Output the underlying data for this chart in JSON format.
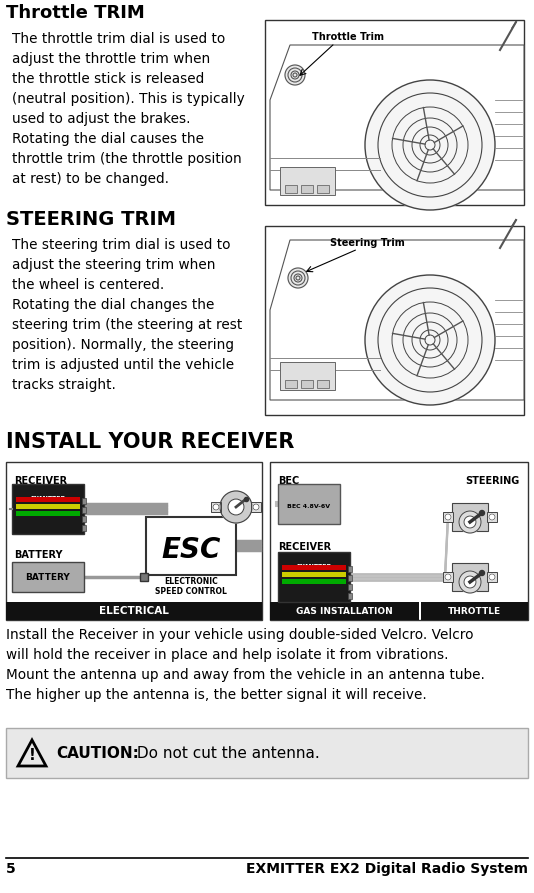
{
  "bg_color": "#ffffff",
  "page_number": "5",
  "footer_text": "EXMITTER EX2 Digital Radio System",
  "section1_title": "Throttle TRIM",
  "section1_body": "The throttle trim dial is used to\nadjust the throttle trim when\nthe throttle stick is released\n(neutral position). This is typically\nused to adjust the brakes.\nRotating the dial causes the\nthrottle trim (the throttle position\nat rest) to be changed.",
  "section1_img_label": "Throttle Trim",
  "section2_title": "STEERING TRIM",
  "section2_body": "The steering trim dial is used to\nadjust the steering trim when\nthe wheel is centered.\nRotating the dial changes the\nsteering trim (the steering at rest\nposition). Normally, the steering\ntrim is adjusted until the vehicle\ntracks straight.",
  "section2_img_label": "Steering Trim",
  "section3_title": "INSTALL YOUR RECEIVER",
  "section3_body": "Install the Receiver in your vehicle using double-sided Velcro. Velcro\nwill hold the receiver in place and help isolate it from vibrations.\nMount the antenna up and away from the vehicle in an antenna tube.\nThe higher up the antenna is, the better signal it will receive.",
  "caution_bold": "CAUTION:",
  "caution_text": " Do not cut the antenna.",
  "label_electrical": "ELECTRICAL",
  "label_battery": "BATTERY",
  "label_esc_text": "ESC",
  "label_electronic": "ELECTRONIC\nSPEED CONTROL",
  "label_gas": "GAS INSTALLATION",
  "label_bec": "BEC",
  "label_receiver": "RECEIVER",
  "label_steering": "STEERING",
  "label_throttle": "THROTTLE",
  "title1_fontsize": 13,
  "title2_fontsize": 14,
  "title3_fontsize": 15,
  "body_fontsize": 9.8
}
